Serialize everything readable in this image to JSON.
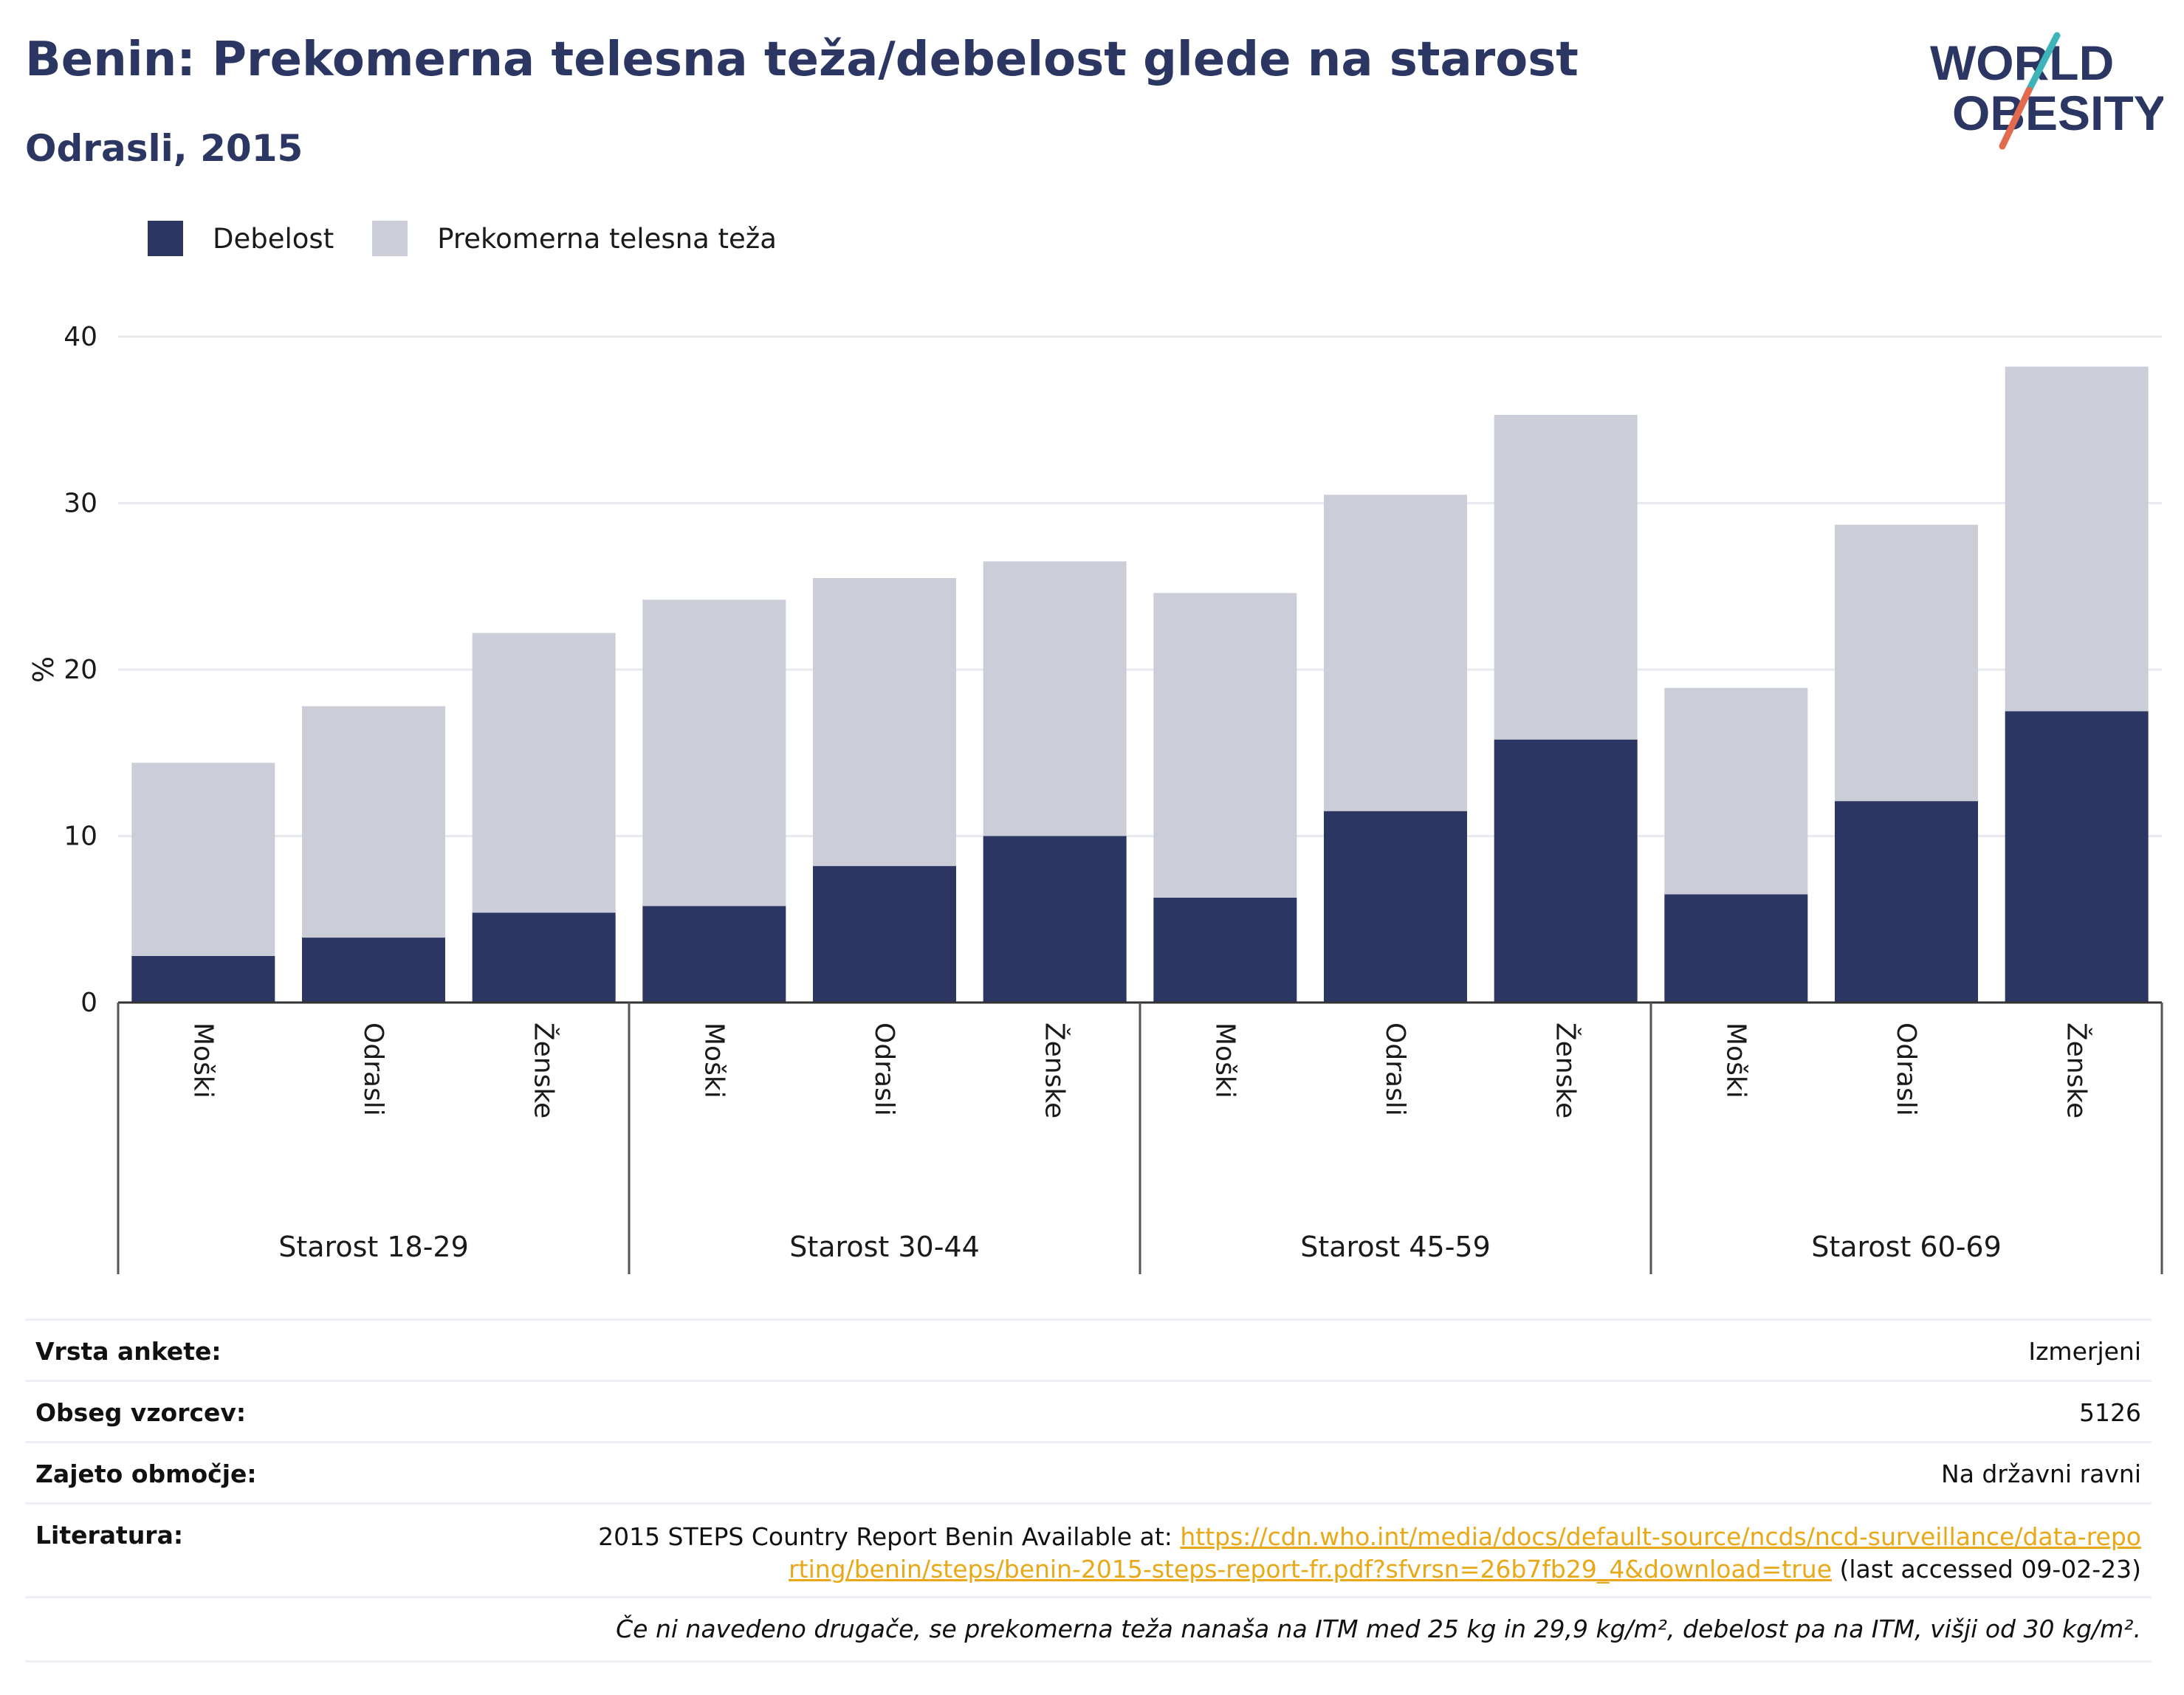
{
  "title": "Benin: Prekomerna telesna teža/debelost glede na starost",
  "subtitle": "Odrasli, 2015",
  "logo": {
    "line1": "WORLD",
    "line2": "OBESITY"
  },
  "colors": {
    "obesity": "#2b3663",
    "overweight": "#cbcdd8",
    "title": "#2b3663",
    "link": "#e8a817"
  },
  "legend": [
    {
      "label": "Debelost",
      "color": "#2b3663"
    },
    {
      "label": "Prekomerna telesna teža",
      "color": "#cbcdd8"
    }
  ],
  "chart_data": {
    "type": "bar",
    "stacked": true,
    "ylabel": "%",
    "ylim": [
      0,
      40
    ],
    "yticks": [
      0,
      10,
      20,
      30,
      40
    ],
    "grid": true,
    "legend_position": "top-left",
    "groups": [
      "Starost 18-29",
      "Starost 30-44",
      "Starost 45-59",
      "Starost 60-69"
    ],
    "categories": [
      "Moški",
      "Odrasli",
      "Ženske",
      "Moški",
      "Odrasli",
      "Ženske",
      "Moški",
      "Odrasli",
      "Ženske",
      "Moški",
      "Odrasli",
      "Ženske"
    ],
    "series": [
      {
        "name": "Debelost",
        "values": [
          2.8,
          3.9,
          5.4,
          5.8,
          8.2,
          10.0,
          6.3,
          11.5,
          15.8,
          6.5,
          12.1,
          17.5
        ]
      },
      {
        "name": "Prekomerna telesna teža",
        "values": [
          11.6,
          13.9,
          16.8,
          18.4,
          17.3,
          16.5,
          18.3,
          19.0,
          19.5,
          12.4,
          16.6,
          20.7
        ]
      }
    ]
  },
  "info": {
    "survey_type": {
      "label": "Vrsta ankete:",
      "value": "Izmerjeni"
    },
    "sample_size": {
      "label": "Obseg vzorcev:",
      "value": "5126"
    },
    "coverage": {
      "label": "Zajeto območje:",
      "value": "Na državni ravni"
    },
    "references": {
      "label": "Literatura:",
      "prefix": "2015 STEPS Country Report Benin Available at: ",
      "link": "https://cdn.who.int/media/docs/default-source/ncds/ncd-surveillance/data-reporting/benin/steps/benin-2015-steps-report-fr.pdf?sfvrsn=26b7fb29_4&download=true",
      "suffix": " (last accessed 09-02-23)"
    },
    "footnote": "Če ni navedeno drugače, se prekomerna teža nanaša na ITM med 25 kg in 29,9 kg/m², debelost pa na ITM, višji od 30 kg/m²."
  }
}
